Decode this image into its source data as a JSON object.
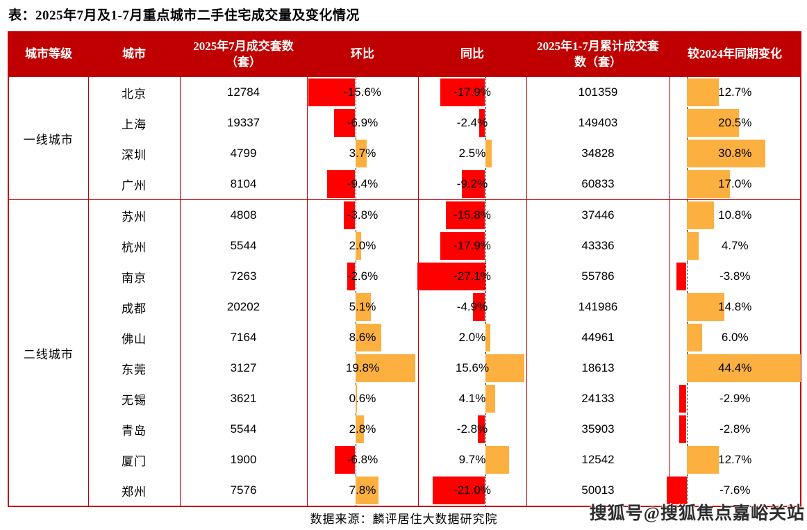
{
  "title": "表：2025年7月及1-7月重点城市二手住宅成交量及变化情况",
  "source": "数据来源：麟评居住大数据研究院",
  "watermark": "搜狐号@搜狐焦点嘉峪关站",
  "colors": {
    "header_bg": "#C00000",
    "border": "#C00000",
    "negative_bar": "#FF0000",
    "positive_bar": "#FBB040"
  },
  "table": {
    "headers": [
      "城市等级",
      "城市",
      "2025年7月成交套数（套）",
      "环比",
      "同比",
      "2025年1-7月累计成交套数（套）",
      "较2024年同期变化"
    ],
    "groups": [
      {
        "tier": "一线城市",
        "rows": [
          {
            "city": "北京",
            "july": "12784",
            "mom": {
              "label": "-15.6%",
              "value": -15.6
            },
            "yoy": {
              "label": "-17.9%",
              "value": -17.9
            },
            "cum": "101359",
            "vs": {
              "label": "12.7%",
              "value": 12.7
            }
          },
          {
            "city": "上海",
            "july": "19337",
            "mom": {
              "label": "-6.9%",
              "value": -6.9
            },
            "yoy": {
              "label": "-2.4%",
              "value": -2.4
            },
            "cum": "149403",
            "vs": {
              "label": "20.5%",
              "value": 20.5
            }
          },
          {
            "city": "深圳",
            "july": "4799",
            "mom": {
              "label": "3.7%",
              "value": 3.7
            },
            "yoy": {
              "label": "2.5%",
              "value": 2.5
            },
            "cum": "34828",
            "vs": {
              "label": "30.8%",
              "value": 30.8
            }
          },
          {
            "city": "广州",
            "july": "8104",
            "mom": {
              "label": "-9.4%",
              "value": -9.4
            },
            "yoy": {
              "label": "-9.2%",
              "value": -9.2
            },
            "cum": "60833",
            "vs": {
              "label": "17.0%",
              "value": 17.0
            }
          }
        ]
      },
      {
        "tier": "二线城市",
        "rows": [
          {
            "city": "苏州",
            "july": "4808",
            "mom": {
              "label": "-3.8%",
              "value": -3.8
            },
            "yoy": {
              "label": "-15.8%",
              "value": -15.8
            },
            "cum": "37446",
            "vs": {
              "label": "10.8%",
              "value": 10.8
            }
          },
          {
            "city": "杭州",
            "july": "5544",
            "mom": {
              "label": "2.0%",
              "value": 2.0
            },
            "yoy": {
              "label": "-17.9%",
              "value": -17.9
            },
            "cum": "43336",
            "vs": {
              "label": "4.7%",
              "value": 4.7
            }
          },
          {
            "city": "南京",
            "july": "7263",
            "mom": {
              "label": "-2.6%",
              "value": -2.6
            },
            "yoy": {
              "label": "-27.1%",
              "value": -27.1
            },
            "cum": "55786",
            "vs": {
              "label": "-3.8%",
              "value": -3.8
            }
          },
          {
            "city": "成都",
            "july": "20202",
            "mom": {
              "label": "5.1%",
              "value": 5.1
            },
            "yoy": {
              "label": "-4.9%",
              "value": -4.9
            },
            "cum": "141986",
            "vs": {
              "label": "14.8%",
              "value": 14.8
            }
          },
          {
            "city": "佛山",
            "july": "7164",
            "mom": {
              "label": "8.6%",
              "value": 8.6
            },
            "yoy": {
              "label": "2.0%",
              "value": 2.0
            },
            "cum": "44961",
            "vs": {
              "label": "6.0%",
              "value": 6.0
            }
          },
          {
            "city": "东莞",
            "july": "3127",
            "mom": {
              "label": "19.8%",
              "value": 19.8
            },
            "yoy": {
              "label": "15.6%",
              "value": 15.6
            },
            "cum": "18613",
            "vs": {
              "label": "44.4%",
              "value": 44.4
            }
          },
          {
            "city": "无锡",
            "july": "3621",
            "mom": {
              "label": "0.6%",
              "value": 0.6
            },
            "yoy": {
              "label": "4.1%",
              "value": 4.1
            },
            "cum": "24133",
            "vs": {
              "label": "-2.9%",
              "value": -2.9
            }
          },
          {
            "city": "青岛",
            "july": "5544",
            "mom": {
              "label": "2.8%",
              "value": 2.8
            },
            "yoy": {
              "label": "-2.8%",
              "value": -2.8
            },
            "cum": "35903",
            "vs": {
              "label": "-2.8%",
              "value": -2.8
            }
          },
          {
            "city": "厦门",
            "july": "1900",
            "mom": {
              "label": "-6.8%",
              "value": -6.8
            },
            "yoy": {
              "label": "9.7%",
              "value": 9.7
            },
            "cum": "12542",
            "vs": {
              "label": "12.7%",
              "value": 12.7
            }
          },
          {
            "city": "郑州",
            "july": "7576",
            "mom": {
              "label": "7.8%",
              "value": 7.8
            },
            "yoy": {
              "label": "-21.0%",
              "value": -21.0
            },
            "cum": "50013",
            "vs": {
              "label": "-7.6%",
              "value": -7.6
            }
          }
        ]
      }
    ]
  },
  "chart_data": {
    "type": "table",
    "title": "表：2025年7月及1-7月重点城市二手住宅成交量及变化情况",
    "columns": [
      "城市等级",
      "城市",
      "2025年7月成交套数（套）",
      "环比(%)",
      "同比(%)",
      "2025年1-7月累计成交套数（套）",
      "较2024年同期变化(%)"
    ],
    "rows": [
      [
        "一线城市",
        "北京",
        12784,
        -15.6,
        -17.9,
        101359,
        12.7
      ],
      [
        "一线城市",
        "上海",
        19337,
        -6.9,
        -2.4,
        149403,
        20.5
      ],
      [
        "一线城市",
        "深圳",
        4799,
        3.7,
        2.5,
        34828,
        30.8
      ],
      [
        "一线城市",
        "广州",
        8104,
        -9.4,
        -9.2,
        60833,
        17.0
      ],
      [
        "二线城市",
        "苏州",
        4808,
        -3.8,
        -15.8,
        37446,
        10.8
      ],
      [
        "二线城市",
        "杭州",
        5544,
        2.0,
        -17.9,
        43336,
        4.7
      ],
      [
        "二线城市",
        "南京",
        7263,
        -2.6,
        -27.1,
        55786,
        -3.8
      ],
      [
        "二线城市",
        "成都",
        20202,
        5.1,
        -4.9,
        141986,
        14.8
      ],
      [
        "二线城市",
        "佛山",
        7164,
        8.6,
        2.0,
        44961,
        6.0
      ],
      [
        "二线城市",
        "东莞",
        3127,
        19.8,
        15.6,
        18613,
        44.4
      ],
      [
        "二线城市",
        "无锡",
        3621,
        0.6,
        4.1,
        24133,
        -2.9
      ],
      [
        "二线城市",
        "青岛",
        5544,
        2.8,
        -2.8,
        35903,
        -2.8
      ],
      [
        "二线城市",
        "厦门",
        1900,
        -6.8,
        9.7,
        12542,
        12.7
      ],
      [
        "二线城市",
        "郑州",
        7576,
        7.8,
        -21.0,
        50013,
        -7.6
      ]
    ],
    "notes": "环比 / 同比 / 较2024年同期变化 columns are rendered as in-cell bar charts: negative values red bars extending left of a dotted zero line, positive values orange bars extending right",
    "legend_position": "none",
    "grid": "off"
  }
}
